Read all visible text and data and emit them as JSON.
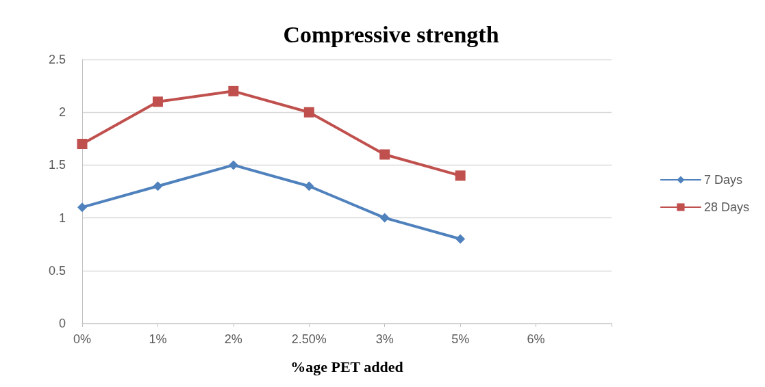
{
  "chart_data": {
    "type": "line",
    "title": "Compressive strength",
    "xlabel": "%age PET added",
    "categories": [
      "0%",
      "1%",
      "2%",
      "2.50%",
      "3%",
      "5%",
      "6%",
      null
    ],
    "series": [
      {
        "name": "7 Days",
        "color": "#4f81bd",
        "marker": "diamond",
        "values": [
          1.1,
          1.3,
          1.5,
          1.3,
          1.0,
          0.8,
          null,
          null
        ]
      },
      {
        "name": "28 Days",
        "color": "#c0504d",
        "marker": "square",
        "values": [
          1.7,
          2.1,
          2.2,
          2.0,
          1.6,
          1.4,
          null,
          null
        ]
      }
    ],
    "ylim": [
      0,
      2.5
    ],
    "yticks": [
      0,
      0.5,
      1,
      1.5,
      2,
      2.5
    ],
    "grid": "y",
    "legend": "right",
    "line_style": "solid"
  }
}
